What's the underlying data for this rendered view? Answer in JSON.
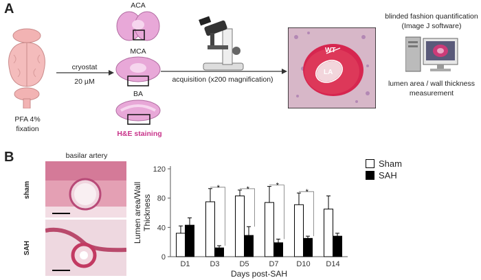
{
  "panel_a": {
    "letter": "A",
    "brain_label_line1": "PFA 4%",
    "brain_label_line2": "fixation",
    "step1_top": "cryostat",
    "step1_bottom": "20 µM",
    "sections": [
      "ACA",
      "MCA",
      "BA"
    ],
    "stain_label": "H&E staining",
    "step2_label": "acquisition (x200 magnification)",
    "micro_labels": {
      "wt": "WT",
      "la": "LA"
    },
    "quant_title_line1": "blinded fashion quantification",
    "quant_title_line2": "(Image J software)",
    "quant_bottom_line1": "lumen area / wall thickness",
    "quant_bottom_line2": "measurement"
  },
  "panel_b": {
    "letter": "B",
    "histo_title": "basilar artery",
    "row_labels": [
      "sham",
      "SAH"
    ],
    "colors": {
      "sham": "#ffffff",
      "sah": "#000000"
    }
  },
  "chart_data": {
    "type": "bar",
    "categories": [
      "D1",
      "D3",
      "D5",
      "D7",
      "D10",
      "D14"
    ],
    "series": [
      {
        "name": "Sham",
        "values": [
          32,
          75,
          83,
          74,
          71,
          65
        ],
        "errors": [
          10,
          18,
          8,
          22,
          16,
          18
        ]
      },
      {
        "name": "SAH",
        "values": [
          43,
          12,
          29,
          19,
          25,
          28
        ],
        "errors": [
          10,
          3,
          12,
          5,
          3,
          4
        ]
      }
    ],
    "significance": [
      "",
      "*",
      "*",
      "*",
      "*",
      ""
    ],
    "xlabel": "Days post-SAH",
    "ylabel_line1": "Lumen area/Wall",
    "ylabel_line2": "Thickness",
    "yticks": [
      0,
      40,
      80,
      120
    ],
    "ylim": [
      0,
      120
    ],
    "legend_position": "top-right"
  }
}
